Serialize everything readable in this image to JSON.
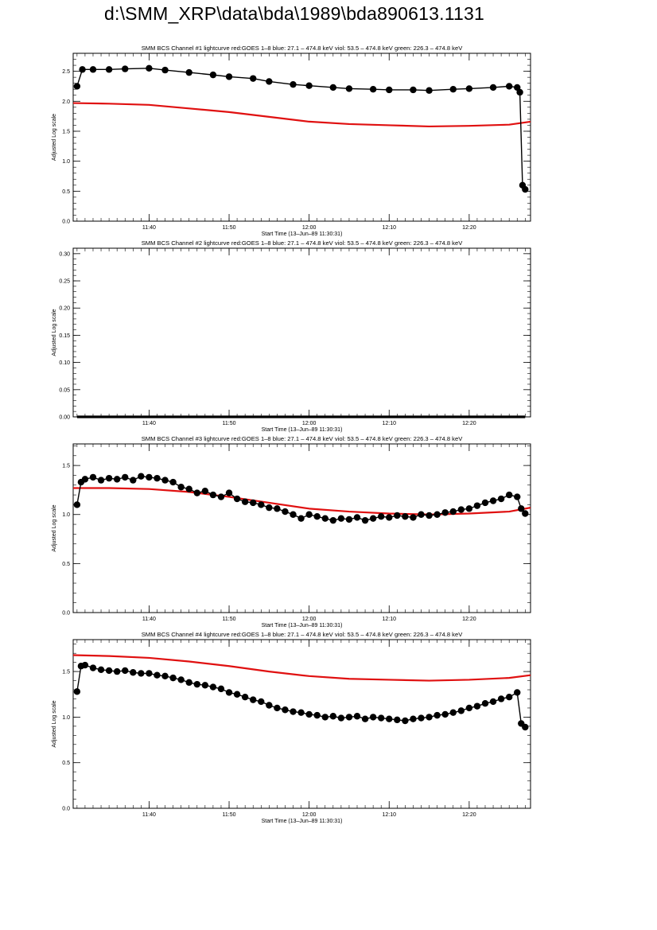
{
  "page": {
    "title": "d:\\SMM_XRP\\data\\bda\\1989\\bda890613.1131"
  },
  "colors": {
    "goes": "#e01010",
    "bcs": "#000000",
    "axes": "#000000"
  },
  "chart_data": [
    {
      "type": "scatter",
      "title": "SMM BCS Channel #1 lightcurve  red:GOES 1–8  blue: 27.1 – 474.8 keV  viol: 53.5 – 474.8 keV  green: 226.3 – 474.8 keV",
      "xlabel": "Start Time (13–Jun–89 11:30:31)",
      "ylabel": "Adjusted Log scale",
      "xlim": [
        "11:30:31",
        "12:27:40"
      ],
      "ylim": [
        0,
        2.8
      ],
      "xticks": [
        "11:40",
        "11:50",
        "12:00",
        "12:10",
        "12:20"
      ],
      "yticks": [
        "0.0",
        "0.5",
        "1.0",
        "1.5",
        "2.0",
        "2.5"
      ],
      "grid": false,
      "series": [
        {
          "name": "red:GOES 1–8",
          "color": "#e01010",
          "style": "line",
          "x": [
            "11:30:31",
            "11:35",
            "11:40",
            "11:45",
            "11:50",
            "11:55",
            "12:00",
            "12:05",
            "12:10",
            "12:15",
            "12:20",
            "12:25",
            "12:27:40"
          ],
          "y": [
            1.97,
            1.96,
            1.94,
            1.88,
            1.82,
            1.74,
            1.66,
            1.62,
            1.6,
            1.58,
            1.59,
            1.61,
            1.66
          ]
        },
        {
          "name": "BCS Channel #1",
          "color": "#000000",
          "style": "points",
          "x": [
            "11:31:00",
            "11:31:40",
            "11:33",
            "11:35",
            "11:37",
            "11:40",
            "11:42",
            "11:45",
            "11:48",
            "11:50",
            "11:53",
            "11:55",
            "11:58",
            "12:00",
            "12:03",
            "12:05",
            "12:08",
            "12:10",
            "12:13",
            "12:15",
            "12:18",
            "12:20",
            "12:23",
            "12:25",
            "12:26:00",
            "12:26:20",
            "12:26:40",
            "12:27:00"
          ],
          "y": [
            2.25,
            2.53,
            2.53,
            2.53,
            2.54,
            2.55,
            2.52,
            2.48,
            2.44,
            2.41,
            2.38,
            2.33,
            2.28,
            2.26,
            2.23,
            2.21,
            2.2,
            2.19,
            2.19,
            2.18,
            2.2,
            2.21,
            2.23,
            2.25,
            2.23,
            2.15,
            0.6,
            0.53
          ]
        }
      ]
    },
    {
      "type": "scatter",
      "title": "SMM BCS Channel #2 lightcurve  red:GOES 1–8  blue: 27.1 – 474.8 keV  viol: 53.5 – 474.8 keV  green: 226.3 – 474.8 keV",
      "xlabel": "Start Time (13–Jun–89 11:30:31)",
      "ylabel": "Adjusted Log scale",
      "xlim": [
        "11:30:31",
        "12:27:40"
      ],
      "ylim": [
        0,
        0.31
      ],
      "xticks": [
        "11:40",
        "11:50",
        "12:00",
        "12:10",
        "12:20"
      ],
      "yticks": [
        "0.00",
        "0.05",
        "0.10",
        "0.15",
        "0.20",
        "0.25",
        "0.30"
      ],
      "grid": false,
      "series": [
        {
          "name": "BCS Channel #2",
          "color": "#000000",
          "style": "flat",
          "x": [
            "11:31:00",
            "12:27:00"
          ],
          "y": [
            0,
            0
          ]
        }
      ]
    },
    {
      "type": "scatter",
      "title": "SMM BCS Channel #3 lightcurve  red:GOES 1–8  blue: 27.1 – 474.8 keV  viol: 53.5 – 474.8 keV  green: 226.3 – 474.8 keV",
      "xlabel": "Start Time (13–Jun–89 11:30:31)",
      "ylabel": "Adjusted Log scale",
      "xlim": [
        "11:30:31",
        "12:27:40"
      ],
      "ylim": [
        0,
        1.72
      ],
      "xticks": [
        "11:40",
        "11:50",
        "12:00",
        "12:10",
        "12:20"
      ],
      "yticks": [
        "0.0",
        "0.5",
        "1.0",
        "1.5"
      ],
      "grid": false,
      "series": [
        {
          "name": "red:GOES 1–8",
          "color": "#e01010",
          "style": "line",
          "x": [
            "11:30:31",
            "11:35",
            "11:40",
            "11:45",
            "11:50",
            "11:55",
            "12:00",
            "12:05",
            "12:10",
            "12:15",
            "12:20",
            "12:25",
            "12:27:40"
          ],
          "y": [
            1.27,
            1.27,
            1.26,
            1.23,
            1.18,
            1.12,
            1.06,
            1.03,
            1.01,
            1.0,
            1.01,
            1.03,
            1.07
          ]
        },
        {
          "name": "BCS Channel #3",
          "color": "#000000",
          "style": "points",
          "x": [
            "11:31:00",
            "11:31:30",
            "11:32",
            "11:33",
            "11:34",
            "11:35",
            "11:36",
            "11:37",
            "11:38",
            "11:39",
            "11:40",
            "11:41",
            "11:42",
            "11:43",
            "11:44",
            "11:45",
            "11:46",
            "11:47",
            "11:48",
            "11:49",
            "11:50",
            "11:51",
            "11:52",
            "11:53",
            "11:54",
            "11:55",
            "11:56",
            "11:57",
            "11:58",
            "11:59",
            "12:00",
            "12:01",
            "12:02",
            "12:03",
            "12:04",
            "12:05",
            "12:06",
            "12:07",
            "12:08",
            "12:09",
            "12:10",
            "12:11",
            "12:12",
            "12:13",
            "12:14",
            "12:15",
            "12:16",
            "12:17",
            "12:18",
            "12:19",
            "12:20",
            "12:21",
            "12:22",
            "12:23",
            "12:24",
            "12:25",
            "12:26",
            "12:26:30",
            "12:27"
          ],
          "y": [
            1.1,
            1.33,
            1.36,
            1.38,
            1.35,
            1.37,
            1.36,
            1.38,
            1.35,
            1.39,
            1.38,
            1.37,
            1.35,
            1.33,
            1.28,
            1.26,
            1.22,
            1.24,
            1.2,
            1.18,
            1.22,
            1.16,
            1.13,
            1.12,
            1.1,
            1.07,
            1.06,
            1.03,
            1.0,
            0.96,
            1.0,
            0.98,
            0.96,
            0.94,
            0.96,
            0.95,
            0.97,
            0.94,
            0.96,
            0.98,
            0.97,
            0.99,
            0.98,
            0.97,
            1.0,
            0.99,
            1.0,
            1.02,
            1.03,
            1.05,
            1.06,
            1.09,
            1.12,
            1.14,
            1.16,
            1.2,
            1.18,
            1.06,
            1.01
          ]
        }
      ]
    },
    {
      "type": "scatter",
      "title": "SMM BCS Channel #4 lightcurve  red:GOES 1–8  blue: 27.1 – 474.8 keV  viol: 53.5 – 474.8 keV  green: 226.3 – 474.8 keV",
      "xlabel": "Start Time (13–Jun–89 11:30:31)",
      "ylabel": "Adjusted Log scale",
      "xlim": [
        "11:30:31",
        "12:27:40"
      ],
      "ylim": [
        0,
        1.85
      ],
      "xticks": [
        "11:40",
        "11:50",
        "12:00",
        "12:10",
        "12:20"
      ],
      "yticks": [
        "0.0",
        "0.5",
        "1.0",
        "1.5"
      ],
      "grid": false,
      "series": [
        {
          "name": "red:GOES 1–8",
          "color": "#e01010",
          "style": "line",
          "x": [
            "11:30:31",
            "11:35",
            "11:40",
            "11:45",
            "11:50",
            "11:55",
            "12:00",
            "12:05",
            "12:10",
            "12:15",
            "12:20",
            "12:25",
            "12:27:40"
          ],
          "y": [
            1.68,
            1.67,
            1.65,
            1.61,
            1.56,
            1.5,
            1.45,
            1.42,
            1.41,
            1.4,
            1.41,
            1.43,
            1.46
          ]
        },
        {
          "name": "BCS Channel #4",
          "color": "#000000",
          "style": "points",
          "x": [
            "11:31:00",
            "11:31:30",
            "11:32",
            "11:33",
            "11:34",
            "11:35",
            "11:36",
            "11:37",
            "11:38",
            "11:39",
            "11:40",
            "11:41",
            "11:42",
            "11:43",
            "11:44",
            "11:45",
            "11:46",
            "11:47",
            "11:48",
            "11:49",
            "11:50",
            "11:51",
            "11:52",
            "11:53",
            "11:54",
            "11:55",
            "11:56",
            "11:57",
            "11:58",
            "11:59",
            "12:00",
            "12:01",
            "12:02",
            "12:03",
            "12:04",
            "12:05",
            "12:06",
            "12:07",
            "12:08",
            "12:09",
            "12:10",
            "12:11",
            "12:12",
            "12:13",
            "12:14",
            "12:15",
            "12:16",
            "12:17",
            "12:18",
            "12:19",
            "12:20",
            "12:21",
            "12:22",
            "12:23",
            "12:24",
            "12:25",
            "12:26",
            "12:26:30",
            "12:27"
          ],
          "y": [
            1.28,
            1.56,
            1.57,
            1.54,
            1.52,
            1.51,
            1.5,
            1.51,
            1.49,
            1.48,
            1.48,
            1.46,
            1.45,
            1.43,
            1.41,
            1.38,
            1.36,
            1.35,
            1.33,
            1.31,
            1.27,
            1.25,
            1.22,
            1.19,
            1.17,
            1.13,
            1.1,
            1.08,
            1.06,
            1.05,
            1.03,
            1.02,
            1.0,
            1.01,
            0.99,
            1.0,
            1.01,
            0.98,
            1.0,
            0.99,
            0.98,
            0.97,
            0.96,
            0.98,
            0.99,
            1.0,
            1.02,
            1.03,
            1.05,
            1.07,
            1.1,
            1.12,
            1.15,
            1.17,
            1.2,
            1.22,
            1.27,
            0.93,
            0.89
          ]
        }
      ]
    }
  ]
}
